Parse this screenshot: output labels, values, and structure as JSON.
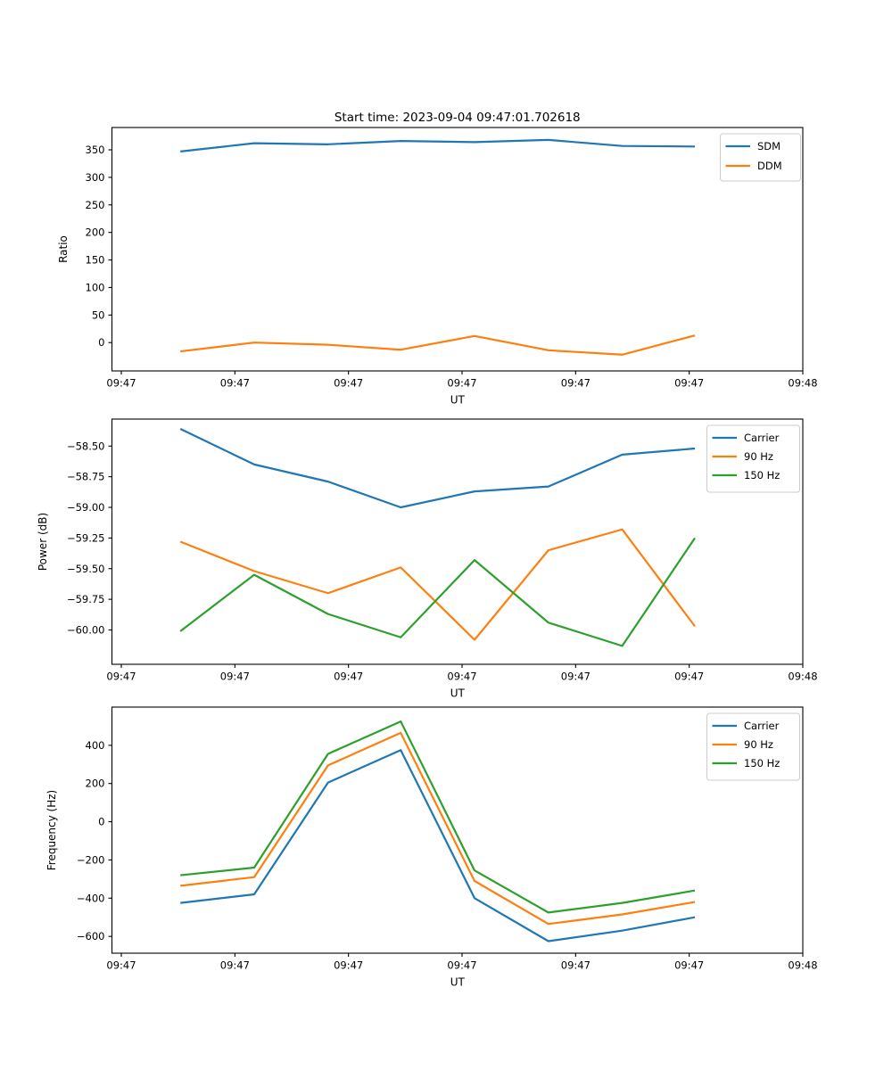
{
  "figure": {
    "title": "Start time: 2023-09-04 09:47:01.702618"
  },
  "chart_data": [
    {
      "type": "line",
      "title": "Start time: 2023-09-04 09:47:01.702618",
      "xlabel": "UT",
      "ylabel": "Ratio",
      "x_ticklabels": [
        "09:47",
        "09:47",
        "09:47",
        "09:47",
        "09:47",
        "09:47",
        "09:48"
      ],
      "x_seconds": [
        5.2,
        11.7,
        18.2,
        24.6,
        31.1,
        37.6,
        44.1,
        50.5
      ],
      "x_range_seconds": [
        0,
        60
      ],
      "y_tick_values": [
        0,
        50,
        100,
        150,
        200,
        250,
        300,
        350
      ],
      "y_tick_labels": [
        "0",
        "50",
        "100",
        "150",
        "200",
        "250",
        "300",
        "350"
      ],
      "ylim": [
        -51.5,
        390.5
      ],
      "grid": false,
      "legend": {
        "position": "upper right",
        "entries": [
          "SDM",
          "DDM"
        ]
      },
      "series": [
        {
          "name": "SDM",
          "color": "#1f77b4",
          "values": [
            347,
            362,
            360,
            366,
            364,
            368,
            357,
            356
          ]
        },
        {
          "name": "DDM",
          "color": "#ff7f0e",
          "values": [
            -16,
            0,
            -4,
            -13,
            12,
            -14,
            -22,
            13
          ]
        }
      ]
    },
    {
      "type": "line",
      "title": "",
      "xlabel": "UT",
      "ylabel": "Power (dB)",
      "x_ticklabels": [
        "09:47",
        "09:47",
        "09:47",
        "09:47",
        "09:47",
        "09:47",
        "09:48"
      ],
      "x_seconds": [
        5.2,
        11.7,
        18.2,
        24.6,
        31.1,
        37.6,
        44.1,
        50.5
      ],
      "x_range_seconds": [
        0,
        60
      ],
      "y_tick_values": [
        -58.5,
        -58.75,
        -59.0,
        -59.25,
        -59.5,
        -59.75,
        -60.0
      ],
      "y_tick_labels": [
        "−58.50",
        "−58.75",
        "−59.00",
        "−59.25",
        "−59.50",
        "−59.75",
        "−60.00"
      ],
      "ylim": [
        -60.28,
        -58.28
      ],
      "grid": false,
      "legend": {
        "position": "upper right",
        "entries": [
          "Carrier",
          "90 Hz",
          "150 Hz"
        ]
      },
      "series": [
        {
          "name": "Carrier",
          "color": "#1f77b4",
          "values": [
            -58.36,
            -58.65,
            -58.79,
            -59.0,
            -58.87,
            -58.83,
            -58.57,
            -58.52
          ]
        },
        {
          "name": "90 Hz",
          "color": "#ff7f0e",
          "values": [
            -59.28,
            -59.52,
            -59.7,
            -59.49,
            -60.08,
            -59.35,
            -59.18,
            -59.97
          ]
        },
        {
          "name": "150 Hz",
          "color": "#2ca02c",
          "values": [
            -60.01,
            -59.55,
            -59.87,
            -60.06,
            -59.43,
            -59.94,
            -60.13,
            -59.25
          ]
        }
      ]
    },
    {
      "type": "line",
      "title": "",
      "xlabel": "UT",
      "ylabel": "Frequency (Hz)",
      "x_ticklabels": [
        "09:47",
        "09:47",
        "09:47",
        "09:47",
        "09:47",
        "09:47",
        "09:48"
      ],
      "x_seconds": [
        5.2,
        11.7,
        18.2,
        24.6,
        31.1,
        37.6,
        44.1,
        50.5
      ],
      "x_range_seconds": [
        0,
        60
      ],
      "y_tick_values": [
        400,
        200,
        0,
        -200,
        -400,
        -600
      ],
      "y_tick_labels": [
        "400",
        "200",
        "0",
        "−200",
        "−400",
        "−600"
      ],
      "ylim": [
        -688,
        600
      ],
      "grid": false,
      "legend": {
        "position": "upper right",
        "entries": [
          "Carrier",
          "90 Hz",
          "150 Hz"
        ]
      },
      "series": [
        {
          "name": "Carrier",
          "color": "#1f77b4",
          "values": [
            -425,
            -380,
            205,
            375,
            -400,
            -625,
            -570,
            -500
          ]
        },
        {
          "name": "90 Hz",
          "color": "#ff7f0e",
          "values": [
            -335,
            -290,
            295,
            465,
            -310,
            -535,
            -485,
            -420
          ]
        },
        {
          "name": "150 Hz",
          "color": "#2ca02c",
          "values": [
            -280,
            -240,
            355,
            525,
            -255,
            -475,
            -425,
            -360
          ]
        }
      ]
    }
  ]
}
